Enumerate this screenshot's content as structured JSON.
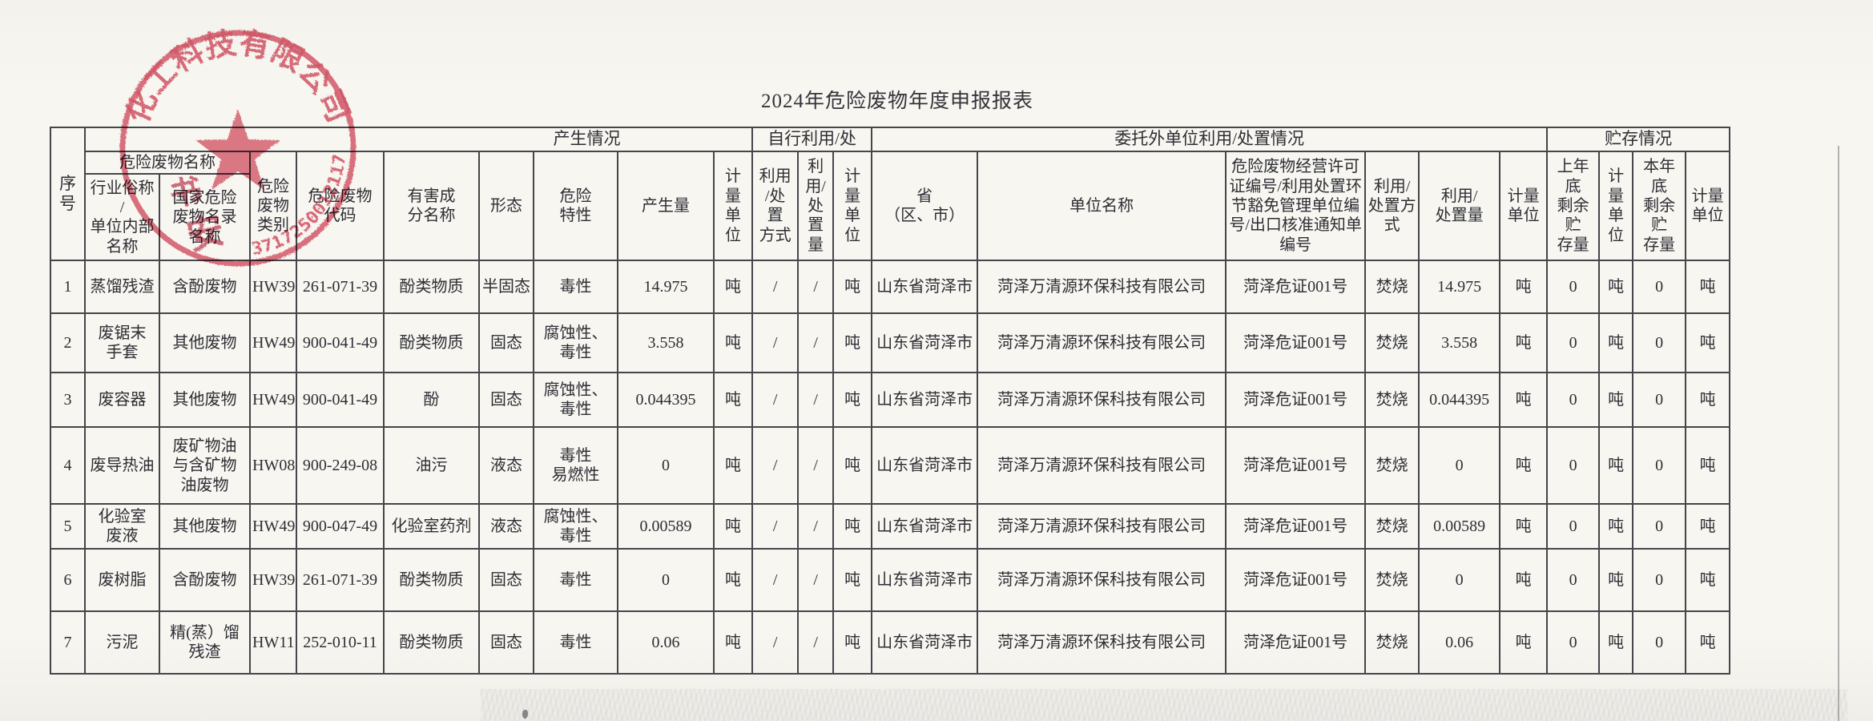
{
  "page": {
    "title": "2024年危险废物年度申报报表"
  },
  "stamp": {
    "arc_text": "化工科技有限公司",
    "serial_number": "3717250012117",
    "overlap_char_1": "书",
    "overlap_char_2": "安",
    "color": "#d5495e"
  },
  "table": {
    "group_headers": {
      "produce": "产生情况",
      "self_use": "自行利用/处",
      "entrust": "委托外单位利用/处置情况",
      "storage": "贮存情况",
      "waste_name": "危险废物名称"
    },
    "headers": {
      "seq": "序号",
      "industry_alias": "行业俗称\n/\n单位内部\n名称",
      "national_list_name": "国家危险\n废物名录\n名称",
      "category": "危险\n废物\n类别",
      "code": "危险废物\n代码",
      "harmful_component": "有害成\n分名称",
      "form": "形态",
      "hazard_trait": "危险\n特性",
      "produced_amount": "产生量",
      "unit_a": "计\n量\n单\n位",
      "self_method": "利用\n/处\n置\n方式",
      "self_amount": "利\n用/\n处\n置\n量",
      "unit_b": "计\n量\n单\n位",
      "province": "省\n（区、市）",
      "unit_name": "单位名称",
      "license_no": "危险废物经营许可证编号/利用处置环节豁免管理单位编号/出口核准通知单编号",
      "entrust_method": "利用/\n处置方\n式",
      "entrust_amount": "利用/\n处置量",
      "unit_c": "计量\n单位",
      "prev_year_storage": "上年\n底\n剩余\n贮\n存量",
      "unit_d": "计\n量\n单\n位",
      "curr_year_storage": "本年\n底\n剩余\n贮\n存量",
      "unit_e": "计量\n单位"
    }
  },
  "rows": [
    [
      "1",
      "蒸馏残渣",
      "含酚废物",
      "HW39",
      "261-071-39",
      "酚类物质",
      "半固态",
      "毒性",
      "14.975",
      "吨",
      "/",
      "/",
      "吨",
      "山东省菏泽市",
      "菏泽万清源环保科技有限公司",
      "菏泽危证001号",
      "焚烧",
      "14.975",
      "吨",
      "0",
      "吨",
      "0",
      "吨"
    ],
    [
      "2",
      "废锯末\n手套",
      "其他废物",
      "HW49",
      "900-041-49",
      "酚类物质",
      "固态",
      "腐蚀性、\n毒性",
      "3.558",
      "吨",
      "/",
      "/",
      "吨",
      "山东省菏泽市",
      "菏泽万清源环保科技有限公司",
      "菏泽危证001号",
      "焚烧",
      "3.558",
      "吨",
      "0",
      "吨",
      "0",
      "吨"
    ],
    [
      "3",
      "废容器",
      "其他废物",
      "HW49",
      "900-041-49",
      "酚",
      "固态",
      "腐蚀性、\n毒性",
      "0.044395",
      "吨",
      "/",
      "/",
      "吨",
      "山东省菏泽市",
      "菏泽万清源环保科技有限公司",
      "菏泽危证001号",
      "焚烧",
      "0.044395",
      "吨",
      "0",
      "吨",
      "0",
      "吨"
    ],
    [
      "4",
      "废导热油",
      "废矿物油\n与含矿物\n油废物",
      "HW08",
      "900-249-08",
      "油污",
      "液态",
      "毒性\n易燃性",
      "0",
      "吨",
      "/",
      "/",
      "吨",
      "山东省菏泽市",
      "菏泽万清源环保科技有限公司",
      "菏泽危证001号",
      "焚烧",
      "0",
      "吨",
      "0",
      "吨",
      "0",
      "吨"
    ],
    [
      "5",
      "化验室\n废液",
      "其他废物",
      "HW49",
      "900-047-49",
      "化验室药剂",
      "液态",
      "腐蚀性、\n毒性",
      "0.00589",
      "吨",
      "/",
      "/",
      "吨",
      "山东省菏泽市",
      "菏泽万清源环保科技有限公司",
      "菏泽危证001号",
      "焚烧",
      "0.00589",
      "吨",
      "0",
      "吨",
      "0",
      "吨"
    ],
    [
      "6",
      "废树脂",
      "含酚废物",
      "HW39",
      "261-071-39",
      "酚类物质",
      "固态",
      "毒性",
      "0",
      "吨",
      "/",
      "/",
      "吨",
      "山东省菏泽市",
      "菏泽万清源环保科技有限公司",
      "菏泽危证001号",
      "焚烧",
      "0",
      "吨",
      "0",
      "吨",
      "0",
      "吨"
    ],
    [
      "7",
      "污泥",
      "精(蒸）馏\n残渣",
      "HW11",
      "252-010-11",
      "酚类物质",
      "固态",
      "毒性",
      "0.06",
      "吨",
      "/",
      "/",
      "吨",
      "山东省菏泽市",
      "菏泽万清源环保科技有限公司",
      "菏泽危证001号",
      "焚烧",
      "0.06",
      "吨",
      "0",
      "吨",
      "0",
      "吨"
    ]
  ]
}
